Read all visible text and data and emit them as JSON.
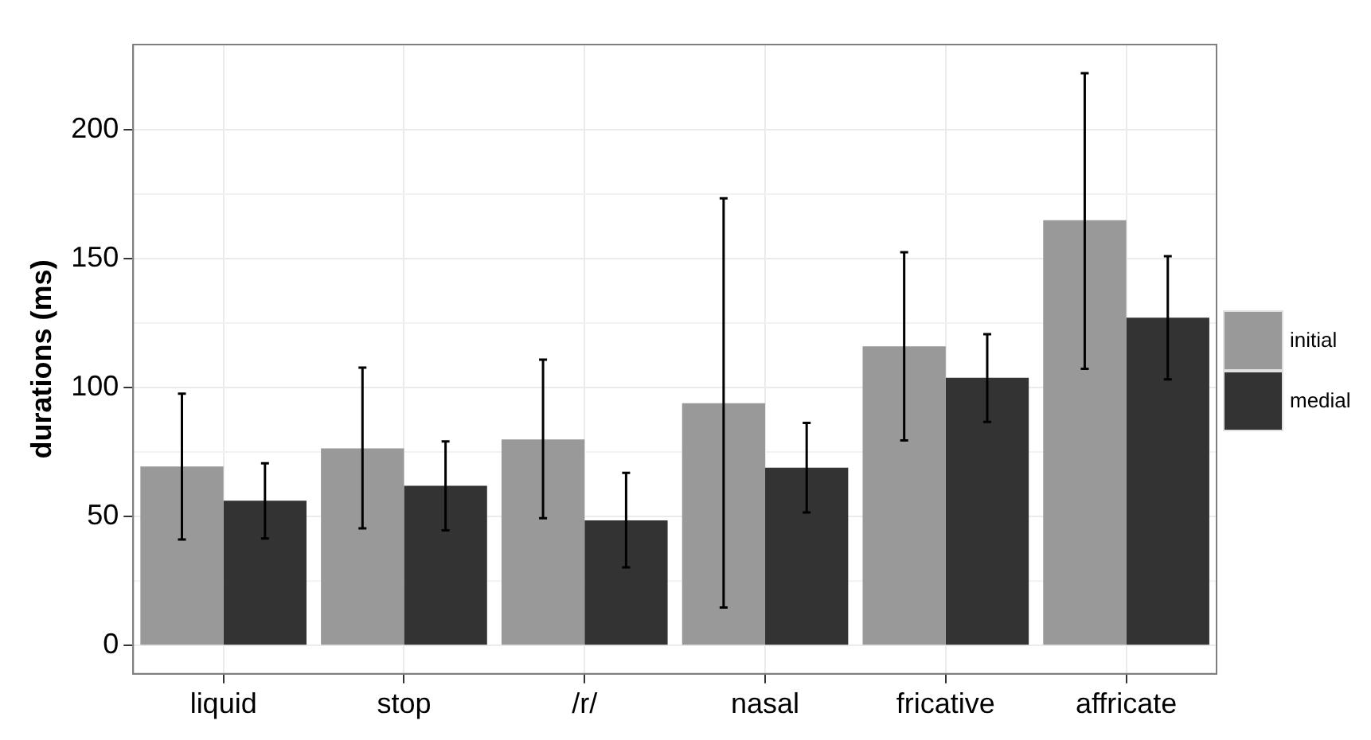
{
  "chart_data": {
    "type": "bar",
    "ylabel": "durations (ms)",
    "categories": [
      "liquid",
      "stop",
      "/r/",
      "nasal",
      "fricative",
      "affricate"
    ],
    "series": [
      {
        "name": "initial",
        "color": "#999999",
        "values": [
          69.4,
          76.4,
          79.9,
          93.9,
          116.0,
          164.9
        ],
        "errors": [
          [
            41.1,
            97.6
          ],
          [
            45.4,
            107.7
          ],
          [
            49.3,
            110.8
          ],
          [
            14.7,
            173.4
          ],
          [
            79.5,
            152.5
          ],
          [
            107.3,
            221.9
          ]
        ]
      },
      {
        "name": "medial",
        "color": "#333333",
        "values": [
          56.1,
          61.9,
          48.5,
          68.9,
          103.8,
          127.1
        ],
        "errors": [
          [
            41.5,
            70.6
          ],
          [
            44.6,
            79.1
          ],
          [
            30.3,
            66.9
          ],
          [
            51.6,
            86.3
          ],
          [
            86.7,
            120.7
          ],
          [
            103.2,
            150.9
          ]
        ]
      }
    ],
    "ylim": [
      -11,
      233
    ],
    "yticks": [
      0,
      50,
      100,
      150,
      200
    ],
    "grid": true,
    "legend": "right"
  }
}
